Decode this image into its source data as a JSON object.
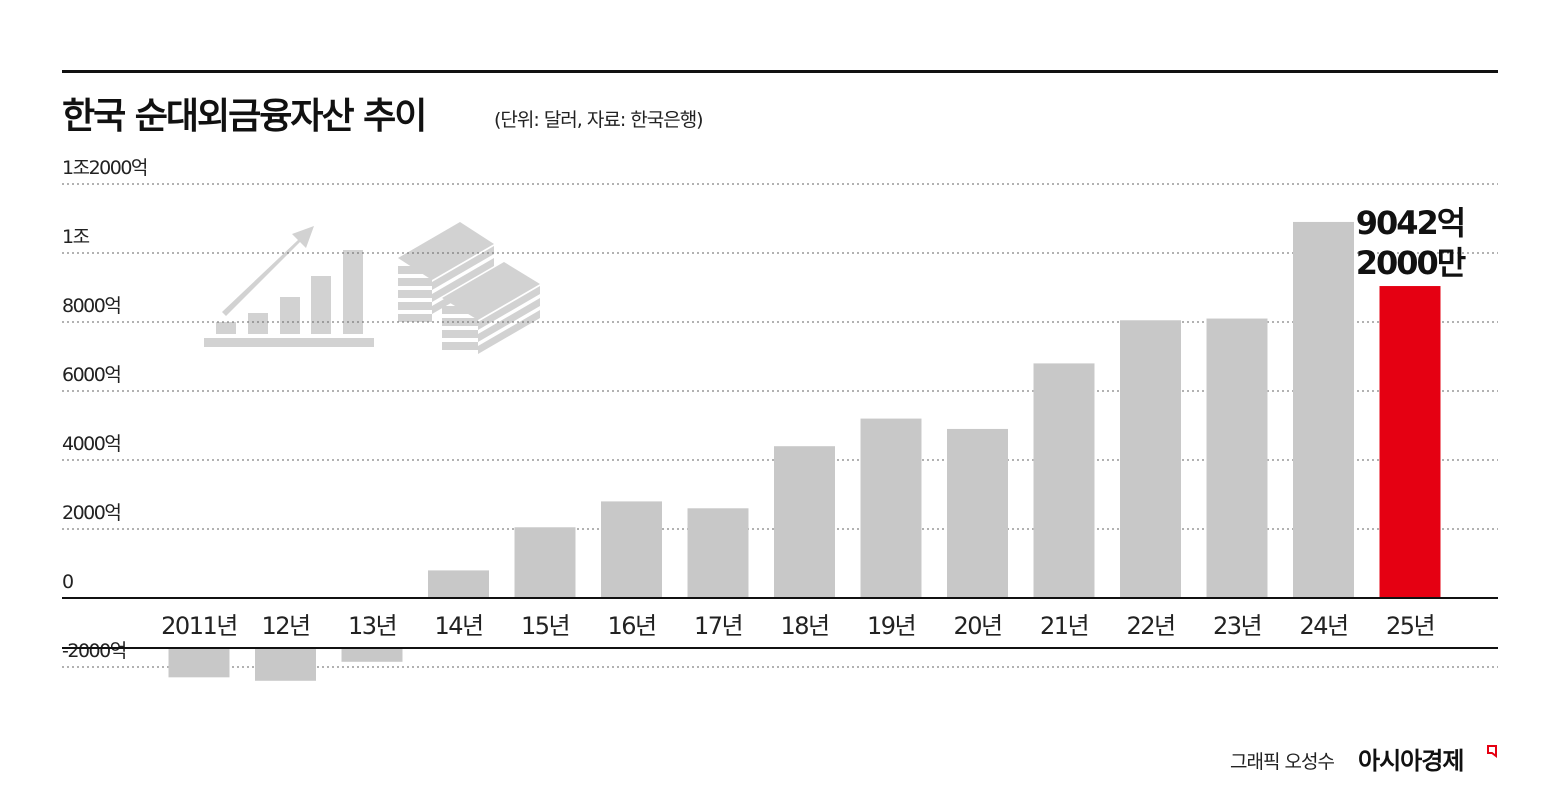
{
  "header": {
    "title": "한국 순대외금융자산 추이",
    "subtitle": "(단위: 달러, 자료: 한국은행)"
  },
  "footer": {
    "credit": "그래픽 오성수",
    "brand": "아시아경제"
  },
  "colors": {
    "bar": "#c8c8c8",
    "highlight": "#e50012",
    "icon": "#d2d2d2",
    "grid": "#666666"
  },
  "chart_data": {
    "type": "bar",
    "title": "한국 순대외금융자산 추이",
    "unit": "억 달러",
    "categories": [
      "2011년",
      "12년",
      "13년",
      "14년",
      "15년",
      "16년",
      "17년",
      "18년",
      "19년",
      "20년",
      "21년",
      "22년",
      "23년",
      "24년",
      "25년"
    ],
    "values": [
      -850,
      -950,
      -400,
      800,
      2050,
      2800,
      2600,
      4400,
      5200,
      4900,
      6800,
      8050,
      8100,
      10900,
      9042.2
    ],
    "highlight_index": 14,
    "highlight_label": [
      "9042억",
      "2000만"
    ],
    "ylim": [
      -3500,
      12000
    ],
    "yticks": [
      {
        "value": 12000,
        "label": "1조2000억"
      },
      {
        "value": 10000,
        "label": "1조"
      },
      {
        "value": 8000,
        "label": "8000억"
      },
      {
        "value": 6000,
        "label": "6000억"
      },
      {
        "value": 4000,
        "label": "4000억"
      },
      {
        "value": 2000,
        "label": "2000억"
      },
      {
        "value": 0,
        "label": "0"
      },
      {
        "value": -2000,
        "label": "-2000억"
      }
    ],
    "grid": true
  }
}
